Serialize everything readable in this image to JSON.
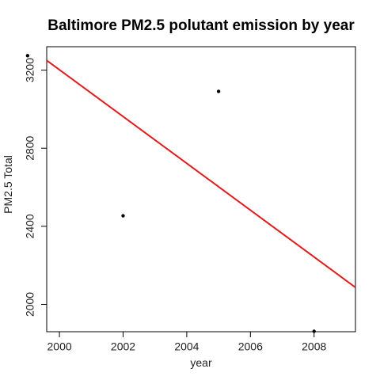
{
  "chart_data": {
    "type": "scatter",
    "title": "Baltimore PM2.5 polutant emission by year",
    "xlabel": "year",
    "ylabel": "PM2.5 Total",
    "x": [
      1999,
      2002,
      2005,
      2008
    ],
    "y": [
      3274,
      2454,
      3091,
      1862
    ],
    "xlim": [
      1999.6,
      2009.3
    ],
    "ylim": [
      1860,
      3320
    ],
    "xticks": [
      2000,
      2002,
      2004,
      2006,
      2008
    ],
    "yticks": [
      2000,
      2400,
      2800,
      3200
    ],
    "trend_line": {
      "type": "linear",
      "points": [
        [
          1999.6,
          3250
        ],
        [
          2009.3,
          2087
        ]
      ],
      "color": "#e31a1c"
    },
    "point_color": "#000000",
    "grid": false,
    "legend": "none"
  }
}
